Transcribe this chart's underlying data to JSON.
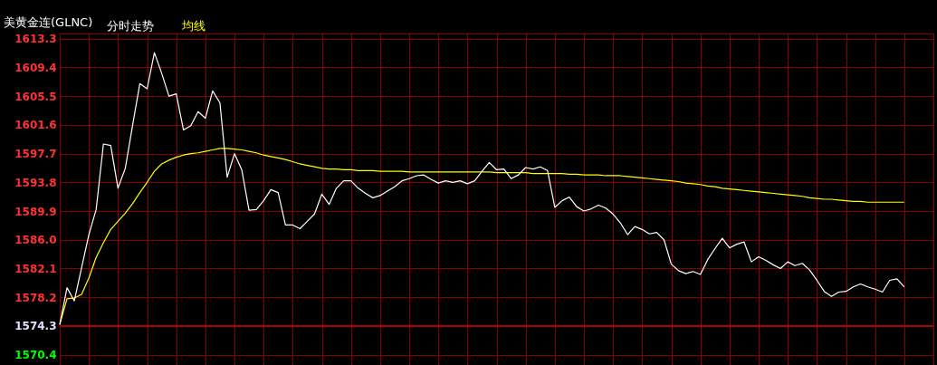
{
  "chart_data": {
    "type": "line",
    "title": "美黄金连(GLNC)",
    "categories": [
      null,
      null,
      null,
      null,
      null,
      null,
      null,
      null,
      null,
      null,
      null,
      null,
      null,
      null,
      null,
      null,
      null,
      null,
      null,
      null,
      null,
      null,
      null,
      null,
      null,
      null,
      null,
      null,
      null,
      null,
      null,
      null,
      null,
      null,
      null,
      null,
      null,
      null,
      null,
      null,
      null,
      null,
      null,
      null,
      null,
      null,
      null,
      null,
      null,
      null,
      null,
      null,
      null,
      null,
      null,
      null,
      null,
      null,
      null,
      null,
      null,
      null,
      null,
      null,
      null,
      null,
      null,
      null,
      null,
      null,
      null,
      null,
      null,
      null,
      null,
      null,
      null,
      null,
      null,
      null,
      null,
      null,
      null,
      null,
      null,
      null,
      null,
      null,
      null,
      null,
      null,
      null,
      null,
      null,
      null,
      null,
      null,
      null,
      null,
      null,
      null,
      null,
      null,
      null,
      null,
      null,
      null,
      null,
      null,
      null,
      null,
      null,
      null,
      null,
      null,
      null,
      null,
      null,
      null,
      null,
      null
    ],
    "series": [
      {
        "name": "分时走势",
        "color": "#ffffff",
        "values": [
          1574.5,
          1579.5,
          1577.7,
          1582.2,
          1586.7,
          1590.1,
          1599.0,
          1598.8,
          1593.0,
          1595.7,
          1601.5,
          1607.2,
          1606.5,
          1611.4,
          1608.6,
          1605.5,
          1605.8,
          1600.9,
          1601.5,
          1603.4,
          1602.5,
          1606.2,
          1604.6,
          1594.5,
          1597.7,
          1595.5,
          1590.0,
          1590.1,
          1591.3,
          1592.8,
          1592.4,
          1588.0,
          1588.0,
          1587.5,
          1588.5,
          1589.5,
          1592.2,
          1590.8,
          1593.0,
          1594.0,
          1594.0,
          1593.0,
          1592.3,
          1591.7,
          1592.0,
          1592.6,
          1593.2,
          1594.0,
          1594.3,
          1594.7,
          1594.8,
          1594.2,
          1593.7,
          1594.0,
          1593.8,
          1594.0,
          1593.6,
          1594.0,
          1595.3,
          1596.5,
          1595.5,
          1595.6,
          1594.3,
          1594.8,
          1595.8,
          1595.6,
          1595.9,
          1595.4,
          1590.4,
          1591.3,
          1591.8,
          1590.5,
          1589.9,
          1590.2,
          1590.7,
          1590.3,
          1589.5,
          1588.3,
          1586.7,
          1587.8,
          1587.4,
          1586.8,
          1587.0,
          1586.0,
          1582.7,
          1581.8,
          1581.4,
          1581.7,
          1581.3,
          1583.3,
          1584.8,
          1586.2,
          1584.9,
          1585.4,
          1585.7,
          1583.0,
          1583.7,
          1583.2,
          1582.6,
          1582.1,
          1583.0,
          1582.5,
          1582.8,
          1581.9,
          1580.5,
          1579.0,
          1578.3,
          1578.9,
          1579.0,
          1579.6,
          1580.0,
          1579.6,
          1579.3,
          1578.9,
          1580.5,
          1580.7,
          1579.6,
          null,
          null,
          null,
          null
        ]
      },
      {
        "name": "均线",
        "color": "#ffff00",
        "values": [
          1574.5,
          1578.0,
          1578.1,
          1578.6,
          1580.8,
          1583.6,
          1585.6,
          1587.4,
          1588.5,
          1589.6,
          1590.9,
          1592.4,
          1593.8,
          1595.3,
          1596.3,
          1596.8,
          1597.2,
          1597.5,
          1597.7,
          1597.8,
          1598.0,
          1598.2,
          1598.4,
          1598.4,
          1598.3,
          1598.2,
          1598.0,
          1597.8,
          1597.5,
          1597.3,
          1597.1,
          1596.9,
          1596.6,
          1596.3,
          1596.1,
          1595.9,
          1595.7,
          1595.6,
          1595.6,
          1595.5,
          1595.5,
          1595.4,
          1595.4,
          1595.4,
          1595.3,
          1595.3,
          1595.3,
          1595.3,
          1595.2,
          1595.2,
          1595.2,
          1595.2,
          1595.2,
          1595.2,
          1595.2,
          1595.2,
          1595.2,
          1595.2,
          1595.2,
          1595.2,
          1595.1,
          1595.1,
          1595.1,
          1595.1,
          1595.1,
          1595.0,
          1595.0,
          1595.0,
          1595.0,
          1595.0,
          1594.9,
          1594.9,
          1594.8,
          1594.8,
          1594.8,
          1594.7,
          1594.7,
          1594.7,
          1594.6,
          1594.5,
          1594.4,
          1594.3,
          1594.2,
          1594.1,
          1594.0,
          1593.9,
          1593.7,
          1593.6,
          1593.5,
          1593.3,
          1593.2,
          1593.0,
          1592.9,
          1592.8,
          1592.7,
          1592.6,
          1592.5,
          1592.4,
          1592.3,
          1592.2,
          1592.1,
          1592.0,
          1591.9,
          1591.7,
          1591.6,
          1591.5,
          1591.5,
          1591.4,
          1591.3,
          1591.2,
          1591.2,
          1591.1,
          1591.1,
          1591.1,
          1591.1,
          1591.1,
          1591.1,
          null,
          null,
          null,
          null
        ]
      }
    ],
    "ylim": [
      1569.0,
      1614.0
    ],
    "yticks": [
      1570.4,
      1574.3,
      1578.2,
      1582.1,
      {
        "value": 1586,
        "label": "1586.0"
      },
      1589.9,
      1593.8,
      1597.7,
      1601.6,
      1605.5,
      1609.4,
      1613.3
    ],
    "ref_lines": [
      {
        "axis": "y",
        "value": 1574.3,
        "color": "#b00000"
      }
    ],
    "grid": true,
    "legend": "top left",
    "tick_labels": "y"
  }
}
